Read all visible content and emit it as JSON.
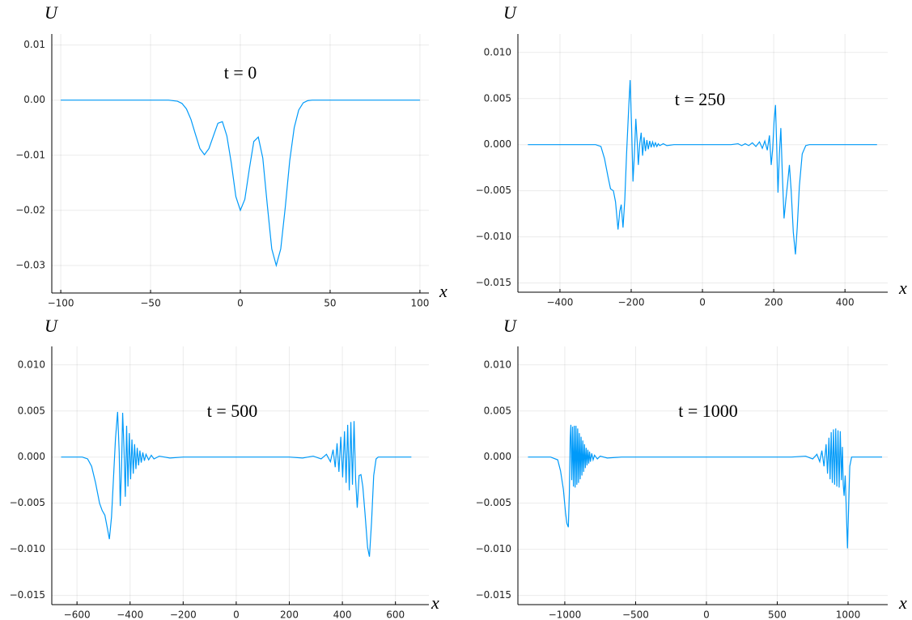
{
  "chart_data": [
    {
      "type": "line",
      "annotation": "t = 0",
      "xlabel": "x",
      "ylabel": "U",
      "color": "#009af9",
      "grid": true,
      "xlim": [
        -105,
        105
      ],
      "ylim": [
        -0.035,
        0.012
      ],
      "xticks": [
        {
          "value": -100,
          "label": "−100"
        },
        {
          "value": -50,
          "label": "−50"
        },
        0,
        50,
        100
      ],
      "yticks": [
        0.01,
        {
          "value": 0,
          "label": "0.00"
        },
        {
          "value": -0.01,
          "label": "−0.01"
        },
        {
          "value": -0.02,
          "label": "−0.02"
        },
        {
          "value": -0.03,
          "label": "−0.03"
        }
      ],
      "x": [
        -100,
        -90,
        -80,
        -70,
        -60,
        -50,
        -40,
        -35,
        -32.5,
        -30,
        -27.5,
        -25,
        -22.5,
        -20,
        -17.5,
        -15,
        -12.5,
        -10,
        -7.5,
        -5,
        -2.5,
        0,
        2.5,
        5,
        7.5,
        10,
        12.5,
        15,
        17.5,
        20,
        22.5,
        25,
        27.5,
        30,
        32.5,
        35,
        37.5,
        40,
        50,
        60,
        70,
        80,
        90,
        100
      ],
      "values": [
        0,
        0,
        0,
        0,
        0,
        0,
        0,
        -0.0002,
        -0.0006,
        -0.0016,
        -0.0035,
        -0.0062,
        -0.0088,
        -0.0099,
        -0.0088,
        -0.0065,
        -0.0042,
        -0.0039,
        -0.0065,
        -0.0115,
        -0.0175,
        -0.02,
        -0.018,
        -0.0125,
        -0.0075,
        -0.0067,
        -0.0105,
        -0.019,
        -0.027,
        -0.03,
        -0.027,
        -0.0195,
        -0.011,
        -0.005,
        -0.0018,
        -0.0005,
        -0.0001,
        0,
        0,
        0,
        0,
        0,
        0,
        0
      ]
    },
    {
      "type": "line",
      "annotation": "t = 250",
      "xlabel": "x",
      "ylabel": "U",
      "color": "#009af9",
      "grid": true,
      "xlim": [
        -518,
        520
      ],
      "ylim": [
        -0.016,
        0.012
      ],
      "xticks": [
        {
          "value": -400,
          "label": "−400"
        },
        {
          "value": -200,
          "label": "−200"
        },
        0,
        200,
        400
      ],
      "yticks": [
        {
          "value": 0.01,
          "label": "0.010"
        },
        {
          "value": 0.005,
          "label": "0.005"
        },
        {
          "value": 0,
          "label": "0.000"
        },
        {
          "value": -0.005,
          "label": "−0.005"
        },
        {
          "value": -0.01,
          "label": "−0.010"
        },
        {
          "value": -0.015,
          "label": "−0.015"
        }
      ],
      "x": [
        -490,
        -400,
        -300,
        -285,
        -275,
        -265,
        -258,
        -250,
        -244,
        -237,
        -232,
        -228,
        -223,
        -218,
        -213,
        -207,
        -203,
        -199,
        -195,
        -191,
        -187,
        -183,
        -180,
        -176,
        -172,
        -168,
        -164,
        -160,
        -156,
        -152,
        -148,
        -144,
        -140,
        -136,
        -132,
        -128,
        -124,
        -120,
        -110,
        -100,
        -80,
        0,
        80,
        100,
        110,
        120,
        130,
        140,
        150,
        160,
        168,
        175,
        182,
        188,
        193,
        197,
        201,
        205,
        209,
        212,
        216,
        220,
        224,
        229,
        234,
        239,
        244,
        249,
        255,
        261,
        266,
        272,
        280,
        290,
        300,
        400,
        490
      ],
      "values": [
        0,
        0,
        0,
        -0.0002,
        -0.0015,
        -0.0035,
        -0.0048,
        -0.005,
        -0.0062,
        -0.0092,
        -0.0072,
        -0.0065,
        -0.009,
        -0.006,
        -0.001,
        0.004,
        0.007,
        0.002,
        -0.004,
        -0.001,
        0.0028,
        0.0002,
        -0.0022,
        0.0001,
        0.0013,
        -0.0012,
        0.0008,
        -0.0007,
        0.0005,
        -0.0005,
        0.0004,
        -0.0003,
        0.0003,
        -0.0002,
        0.0002,
        -0.0002,
        0.0001,
        -0.0001,
        0.0001,
        -0.0001,
        0,
        0,
        0,
        0.0001,
        -0.0001,
        0.0001,
        -0.0001,
        0.0002,
        -0.0002,
        0.0003,
        -0.0004,
        0.0004,
        -0.0006,
        0.001,
        -0.0022,
        -0.0005,
        0.0025,
        0.0043,
        -0.001,
        -0.0052,
        -0.001,
        0.0018,
        -0.003,
        -0.008,
        -0.006,
        -0.0042,
        -0.0022,
        -0.005,
        -0.0095,
        -0.0119,
        -0.009,
        -0.0045,
        -0.001,
        -0.0001,
        0,
        0,
        0
      ]
    },
    {
      "type": "line",
      "annotation": "t = 500",
      "xlabel": "x",
      "ylabel": "U",
      "color": "#009af9",
      "grid": true,
      "xlim": [
        -695,
        726
      ],
      "ylim": [
        -0.016,
        0.012
      ],
      "xticks": [
        {
          "value": -600,
          "label": "−600"
        },
        {
          "value": -400,
          "label": "−400"
        },
        {
          "value": -200,
          "label": "−200"
        },
        0,
        200,
        400,
        600
      ],
      "yticks": [
        {
          "value": 0.01,
          "label": "0.010"
        },
        {
          "value": 0.005,
          "label": "0.005"
        },
        {
          "value": 0,
          "label": "0.000"
        },
        {
          "value": -0.005,
          "label": "−0.005"
        },
        {
          "value": -0.01,
          "label": "−0.010"
        },
        {
          "value": -0.015,
          "label": "−0.015"
        }
      ],
      "x": [
        -660,
        -580,
        -560,
        -545,
        -530,
        -515,
        -505,
        -495,
        -485,
        -478,
        -470,
        -462,
        -455,
        -447,
        -441,
        -437,
        -432,
        -428,
        -423,
        -418,
        -413,
        -408,
        -403,
        -398,
        -393,
        -388,
        -383,
        -378,
        -373,
        -368,
        -363,
        -358,
        -352,
        -346,
        -340,
        -330,
        -320,
        -310,
        -290,
        -250,
        -200,
        200,
        250,
        290,
        320,
        340,
        355,
        365,
        373,
        380,
        387,
        394,
        401,
        408,
        414,
        420,
        426,
        432,
        438,
        444,
        450,
        456,
        463,
        470,
        477,
        485,
        495,
        502,
        510,
        518,
        527,
        535,
        600,
        660
      ],
      "values": [
        0,
        0,
        -0.0002,
        -0.001,
        -0.0028,
        -0.005,
        -0.0058,
        -0.0063,
        -0.0078,
        -0.0089,
        -0.0065,
        -0.002,
        0.002,
        0.0049,
        0.0005,
        -0.0053,
        -0.001,
        0.0048,
        0.001,
        -0.0043,
        0.0034,
        -0.0032,
        0.0026,
        -0.0024,
        0.0019,
        -0.0018,
        0.0014,
        -0.0013,
        0.001,
        -0.0009,
        0.0007,
        -0.0006,
        0.0005,
        -0.0004,
        0.0003,
        -0.0003,
        0.0002,
        -0.0002,
        0.0001,
        -0.0001,
        0,
        0,
        -0.0001,
        0.0001,
        -0.0002,
        0.0003,
        -0.0005,
        0.0008,
        -0.0011,
        0.0015,
        -0.0016,
        0.0022,
        -0.0022,
        0.0028,
        -0.0028,
        0.0035,
        -0.0036,
        0.0038,
        -0.003,
        0.0039,
        -0.0025,
        -0.0055,
        -0.002,
        -0.0019,
        -0.0032,
        -0.006,
        -0.0098,
        -0.0108,
        -0.007,
        -0.002,
        -0.0002,
        0,
        0,
        0
      ]
    },
    {
      "type": "line",
      "annotation": "t = 1000",
      "xlabel": "x",
      "ylabel": "U",
      "color": "#009af9",
      "grid": true,
      "xlim": [
        -1331,
        1280
      ],
      "ylim": [
        -0.016,
        0.012
      ],
      "xticks": [
        {
          "value": -1000,
          "label": "−1000"
        },
        {
          "value": -500,
          "label": "−500"
        },
        0,
        500,
        1000
      ],
      "yticks": [
        {
          "value": 0.01,
          "label": "0.010"
        },
        {
          "value": 0.005,
          "label": "0.005"
        },
        {
          "value": 0,
          "label": "0.000"
        },
        {
          "value": -0.005,
          "label": "−0.005"
        },
        {
          "value": -0.01,
          "label": "−0.010"
        },
        {
          "value": -0.015,
          "label": "−0.015"
        }
      ],
      "x": [
        -1260,
        -1100,
        -1050,
        -1030,
        -1010,
        -995,
        -985,
        -975,
        -968,
        -962,
        -957,
        -951,
        -945,
        -939,
        -933,
        -927,
        -921,
        -915,
        -909,
        -903,
        -897,
        -891,
        -885,
        -879,
        -873,
        -867,
        -861,
        -855,
        -849,
        -843,
        -837,
        -831,
        -825,
        -819,
        -810,
        -800,
        -790,
        -770,
        -750,
        -700,
        -600,
        600,
        700,
        750,
        780,
        800,
        815,
        830,
        845,
        855,
        865,
        873,
        881,
        889,
        897,
        905,
        913,
        921,
        929,
        937,
        945,
        953,
        960,
        966,
        972,
        980,
        988,
        996,
        1003,
        1012,
        1025,
        1100,
        1240
      ],
      "values": [
        0,
        0,
        -0.0003,
        -0.0015,
        -0.0035,
        -0.006,
        -0.0072,
        -0.0076,
        -0.004,
        0.002,
        0.0035,
        -0.0025,
        0.0033,
        -0.0032,
        0.0034,
        -0.0033,
        0.0034,
        -0.003,
        0.0031,
        -0.0028,
        0.0026,
        -0.0024,
        0.0022,
        -0.002,
        0.0018,
        -0.0016,
        0.0014,
        -0.0012,
        0.001,
        -0.0009,
        0.0008,
        -0.0007,
        0.0006,
        -0.0005,
        0.0004,
        -0.0003,
        0.0002,
        -0.0002,
        0.0001,
        -0.0001,
        0,
        0,
        0.0001,
        -0.0002,
        0.0003,
        -0.0005,
        0.0007,
        -0.001,
        0.0014,
        -0.0018,
        0.0021,
        -0.0024,
        0.0027,
        -0.0028,
        0.003,
        -0.003,
        0.0031,
        -0.0032,
        0.0029,
        -0.0033,
        0.0028,
        -0.0025,
        0.0011,
        -0.003,
        -0.0042,
        -0.002,
        -0.006,
        -0.0099,
        -0.006,
        -0.001,
        0,
        0,
        0
      ]
    }
  ]
}
